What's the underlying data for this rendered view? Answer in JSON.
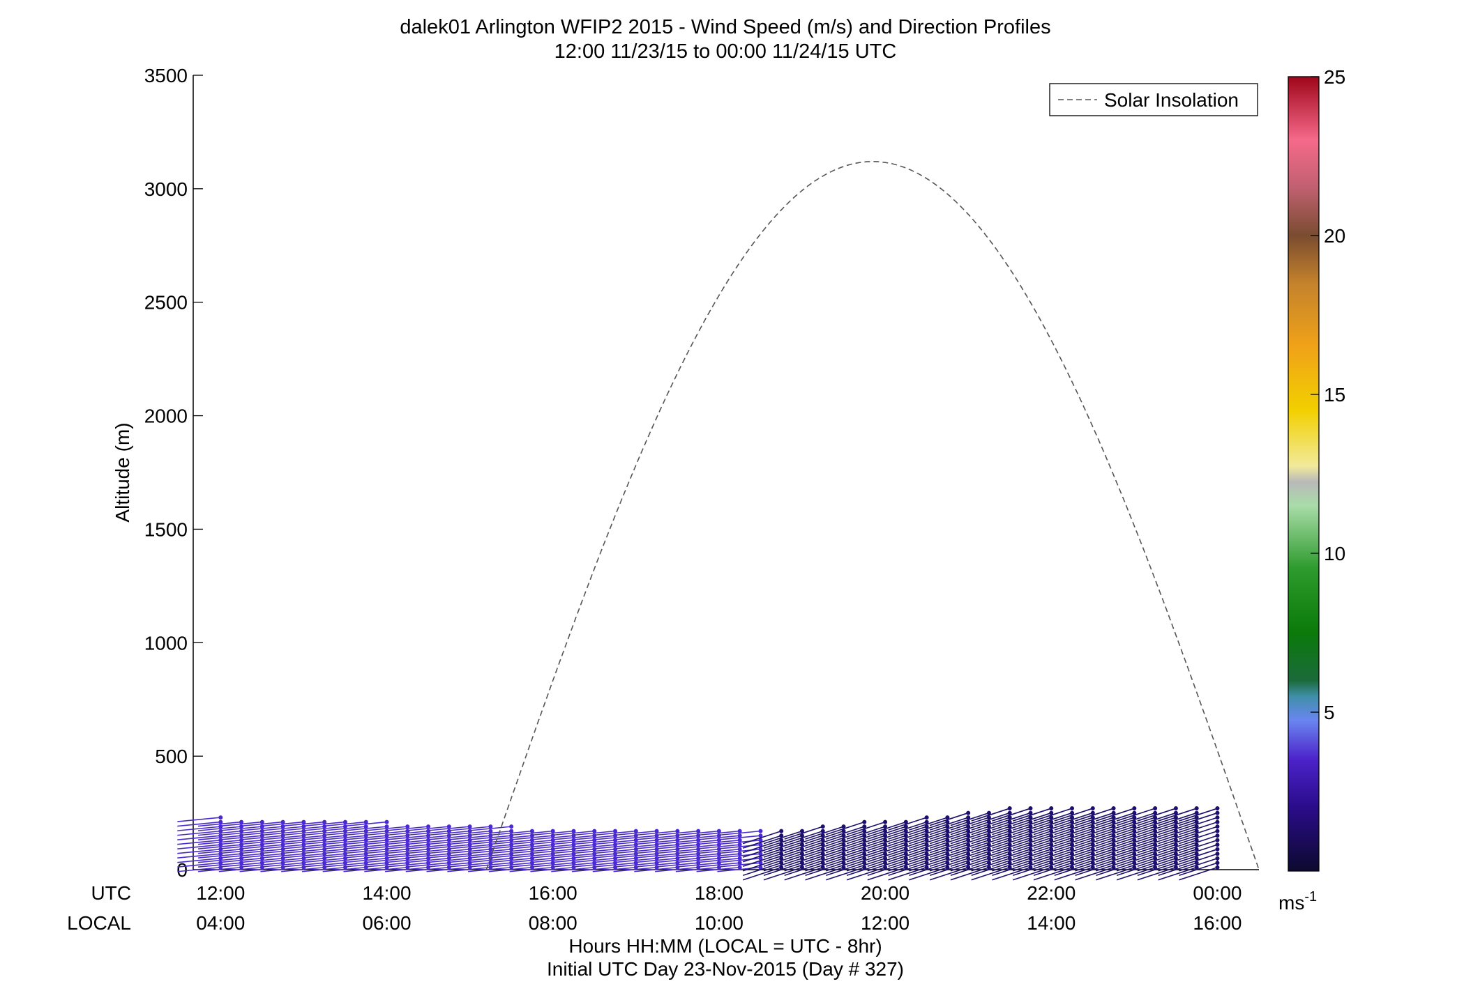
{
  "chart_data": {
    "type": "wind_barb_profile",
    "title": "dalek01 Arlington WFIP2 2015 - Wind Speed (m/s) and Direction Profiles",
    "subtitle": "12:00 11/23/15 to 00:00 11/24/15  UTC",
    "ylabel": "Altitude (m)",
    "xlabel_line1": "Hours HH:MM  (LOCAL = UTC - 8hr)",
    "xlabel_line2": "Initial UTC Day 23-Nov-2015 (Day # 327)",
    "ylim": [
      0,
      3500
    ],
    "y_ticks": [
      "0",
      "500",
      "1000",
      "1500",
      "2000",
      "2500",
      "3000",
      "3500"
    ],
    "x_row_labels": {
      "utc": "UTC",
      "local": "LOCAL"
    },
    "x_ticks_utc": [
      "12:00",
      "14:00",
      "16:00",
      "18:00",
      "20:00",
      "22:00",
      "00:00"
    ],
    "x_ticks_local": [
      "04:00",
      "06:00",
      "08:00",
      "10:00",
      "12:00",
      "14:00",
      "16:00"
    ],
    "x_tick_hours": [
      12,
      14,
      16,
      18,
      20,
      22,
      24
    ],
    "x_range_hours": [
      11.67,
      24.5
    ],
    "legend": {
      "label": "Solar Insolation",
      "placement": "top-right"
    },
    "solar_insolation": {
      "style": "dashed",
      "color": "#555555",
      "start_hour": 15.2,
      "end_hour": 24.5,
      "peak_hour": 19.85,
      "peak_altitude": 3120
    },
    "colorbar": {
      "min": 0,
      "max": 25,
      "ticks": [
        "5",
        "10",
        "15",
        "20",
        "25"
      ],
      "unit": "ms",
      "unit_sup": "-1"
    },
    "profiles": {
      "start_hour": 12.0,
      "step_hours": 0.25,
      "count": 49,
      "level_step_m": 20,
      "dominant_speed_ms": 3,
      "color": "#3a1fb0"
    }
  }
}
